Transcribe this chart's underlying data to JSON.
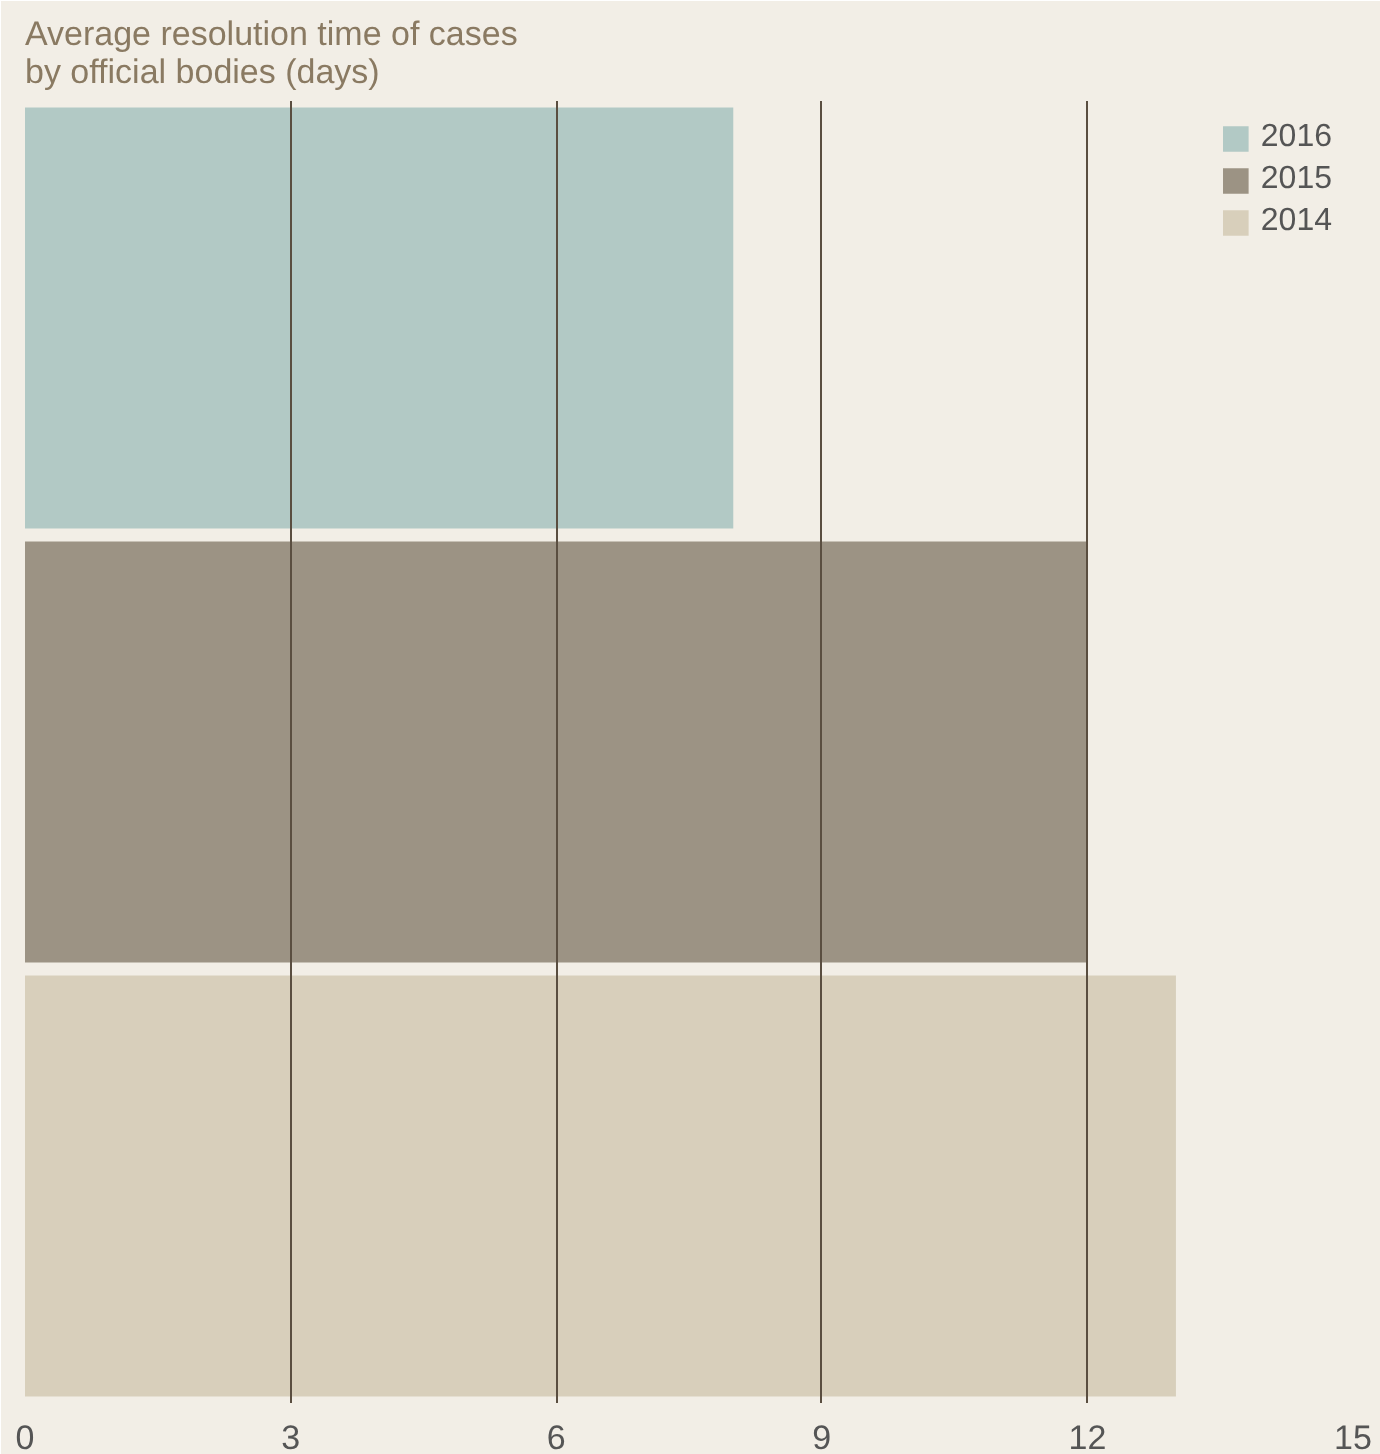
{
  "chart_data": {
    "type": "bar",
    "orientation": "horizontal",
    "title": "Average resolution time of cases\nby official bodies (days)",
    "categories": [
      null,
      null,
      null
    ],
    "series": [
      {
        "name": "2016",
        "color": "#b2c9c5",
        "values": [
          8,
          null,
          null
        ]
      },
      {
        "name": "2015",
        "color": "#9c9384",
        "values": [
          null,
          12,
          null
        ]
      },
      {
        "name": "2014",
        "color": "#d8cfbb",
        "values": [
          null,
          null,
          13
        ]
      }
    ],
    "xlim": [
      0,
      15
    ],
    "xticks": [
      0,
      3,
      6,
      9,
      12,
      15
    ],
    "grid": "x",
    "legend": "top right"
  }
}
